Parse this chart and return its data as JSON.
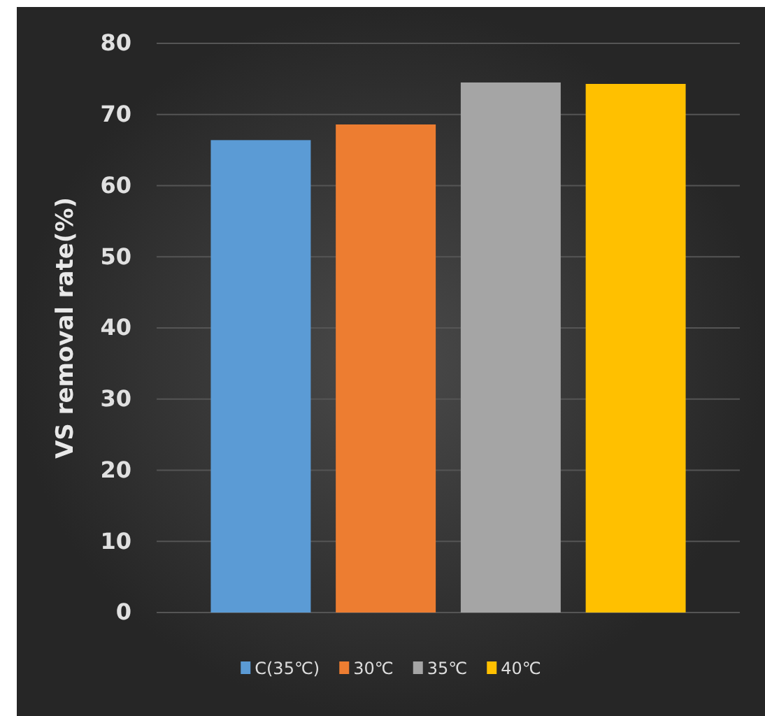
{
  "chart_data": {
    "type": "bar",
    "ylabel": "VS removal rate(%)",
    "categories": [
      null
    ],
    "series": [
      {
        "name": "C(35℃)",
        "color": "#5b9bd5",
        "values": [
          66.4
        ]
      },
      {
        "name": "30℃",
        "color": "#ed7d31",
        "values": [
          68.6
        ]
      },
      {
        "name": "35℃",
        "color": "#a5a5a5",
        "values": [
          74.5
        ]
      },
      {
        "name": "40℃",
        "color": "#ffc000",
        "values": [
          74.3
        ]
      }
    ],
    "ylim": [
      0,
      80
    ],
    "yticks": [
      0,
      10,
      20,
      30,
      40,
      50,
      60,
      70,
      80
    ],
    "grid": "y",
    "legend": "bottom"
  }
}
